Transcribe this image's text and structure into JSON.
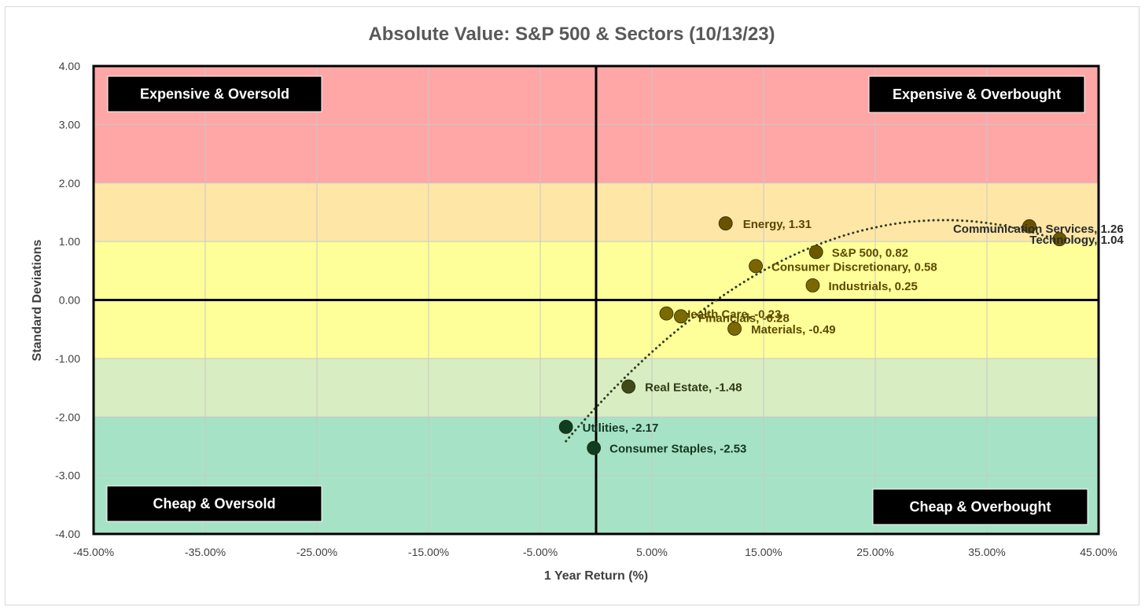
{
  "chart_data": {
    "type": "scatter",
    "title": "Absolute Value: S&P 500 & Sectors (10/13/23)",
    "xlabel": "1 Year Return (%)",
    "ylabel": "Standard Deviations",
    "xlim": [
      -45,
      45
    ],
    "ylim": [
      -4,
      4
    ],
    "x_ticks": [
      -45,
      -35,
      -25,
      -15,
      -5,
      5,
      15,
      25,
      35,
      45
    ],
    "x_tick_labels": [
      "-45.00%",
      "-35.00%",
      "-25.00%",
      "-15.00%",
      "-5.00%",
      "5.00%",
      "15.00%",
      "25.00%",
      "35.00%",
      "45.00%"
    ],
    "y_ticks": [
      4,
      3,
      2,
      1,
      0,
      -1,
      -2,
      -3,
      -4
    ],
    "y_tick_labels": [
      "4.00",
      "3.00",
      "2.00",
      "1.00",
      "0.00",
      "-1.00",
      "-2.00",
      "-3.00",
      "-4.00"
    ],
    "grid": true,
    "bands": [
      {
        "y0": 2,
        "y1": 4,
        "color": "#ffa6a6"
      },
      {
        "y0": 1,
        "y1": 2,
        "color": "#fee6a6"
      },
      {
        "y0": -1,
        "y1": 1,
        "color": "#ffff99"
      },
      {
        "y0": -2,
        "y1": -1,
        "color": "#d8edc2"
      },
      {
        "y0": -4,
        "y1": -2,
        "color": "#a6e3c6"
      }
    ],
    "quadrant_labels": {
      "top_left": "Expensive & Oversold",
      "top_right": "Expensive & Overbought",
      "bottom_left": "Cheap & Oversold",
      "bottom_right": "Cheap & Overbought"
    },
    "trendline": {
      "type": "polynomial",
      "style": "dotted",
      "color": "#2f3b1f",
      "x_range": [
        -2.7,
        40.5
      ]
    },
    "points": [
      {
        "name": "Energy",
        "x": 11.6,
        "y": 1.31,
        "label": "Energy, 1.31",
        "color": "#6b5200",
        "label_color": "#5a4600"
      },
      {
        "name": "S&P 500",
        "x": 19.7,
        "y": 0.82,
        "label": "S&P 500, 0.82",
        "color": "#6b5900",
        "label_color": "#5a4a00"
      },
      {
        "name": "Consumer Discretionary",
        "x": 14.3,
        "y": 0.58,
        "label": "Consumer Discretionary, 0.58",
        "color": "#7a6500",
        "label_color": "#5a4a00"
      },
      {
        "name": "Industrials",
        "x": 19.4,
        "y": 0.25,
        "label": "Industrials, 0.25",
        "color": "#7a6800",
        "label_color": "#5a4a00"
      },
      {
        "name": "Communication Services",
        "x": 38.8,
        "y": 1.26,
        "label": "Communication Services, 1.26",
        "color": "#6b5200",
        "label_color": "#2b2b2b"
      },
      {
        "name": "Technology",
        "x": 41.5,
        "y": 1.04,
        "label": "Technology, 1.04",
        "color": "#6b5900",
        "label_color": "#2b2b2b"
      },
      {
        "name": "Health Care",
        "x": 6.3,
        "y": -0.23,
        "label": "Health Care, -0.23",
        "color": "#7a6a00",
        "label_color": "#5a4a00"
      },
      {
        "name": "Financials",
        "x": 7.6,
        "y": -0.28,
        "label": "Financials, -0.28",
        "color": "#7a6a00",
        "label_color": "#5a4a00"
      },
      {
        "name": "Materials",
        "x": 12.4,
        "y": -0.49,
        "label": "Materials, -0.49",
        "color": "#7a6a00",
        "label_color": "#5a4a00"
      },
      {
        "name": "Real Estate",
        "x": 2.9,
        "y": -1.48,
        "label": "Real Estate, -1.48",
        "color": "#3f4a1a",
        "label_color": "#2e3a14"
      },
      {
        "name": "Utilities",
        "x": -2.7,
        "y": -2.17,
        "label": "Utilities, -2.17",
        "color": "#0f3d22",
        "label_color": "#14361f"
      },
      {
        "name": "Consumer Staples",
        "x": -0.2,
        "y": -2.53,
        "label": "Consumer Staples, -2.53",
        "color": "#0f3d22",
        "label_color": "#14361f"
      }
    ]
  }
}
